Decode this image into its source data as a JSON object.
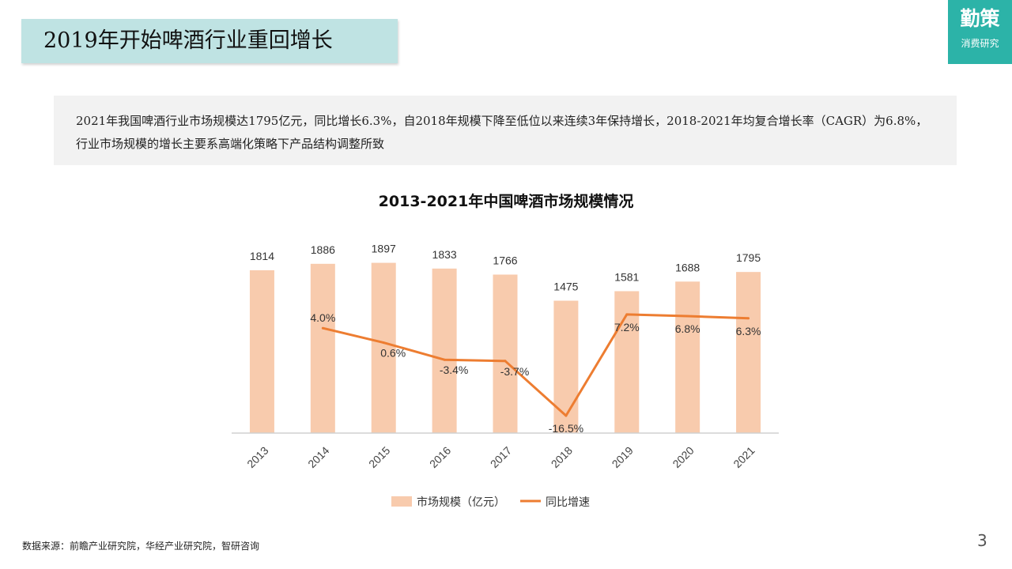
{
  "header": {
    "title": "2019年开始啤酒行业重回增长",
    "logo_main": "勤策",
    "logo_sub": "消费研究"
  },
  "summary": "2021年我国啤酒行业市场规模达1795亿元，同比增长6.3%，自2018年规模下降至低位以来连续3年保持增长，2018-2021年均复合增长率（CAGR）为6.8%，行业市场规模的增长主要系高端化策略下产品结构调整所致",
  "footer": {
    "source": "数据来源：前瞻产业研究院，华经产业研究院，智研咨询",
    "page_number": "3"
  },
  "colors": {
    "bar": "#f8cbad",
    "line": "#ed7d31",
    "title_bg": "#bfe3e3",
    "logo_bg": "#2cb3a8"
  },
  "chart_data": {
    "type": "bar",
    "title": "2013-2021年中国啤酒市场规模情况",
    "categories": [
      "2013",
      "2014",
      "2015",
      "2016",
      "2017",
      "2018",
      "2019",
      "2020",
      "2021"
    ],
    "series": [
      {
        "name": "市场规模（亿元）",
        "type": "bar",
        "values": [
          1814,
          1886,
          1897,
          1833,
          1766,
          1475,
          1581,
          1688,
          1795
        ],
        "labels": [
          "1814",
          "1886",
          "1897",
          "1833",
          "1766",
          "1475",
          "1581",
          "1688",
          "1795"
        ]
      },
      {
        "name": "同比增速",
        "type": "line",
        "values": [
          null,
          4.0,
          0.6,
          -3.4,
          -3.7,
          -16.5,
          7.2,
          6.8,
          6.3
        ],
        "labels": [
          "",
          "4.0%",
          "0.6%",
          "-3.4%",
          "-3.7%",
          "-16.5%",
          "7.2%",
          "6.8%",
          "6.3%"
        ]
      }
    ],
    "legend_position": "bottom",
    "grid": false
  }
}
